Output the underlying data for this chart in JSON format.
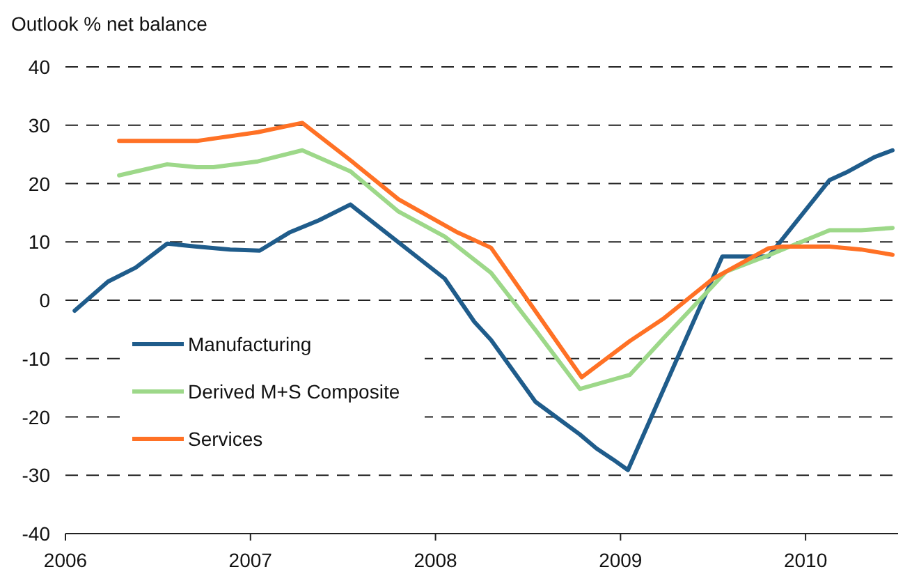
{
  "chart_data": {
    "type": "line",
    "ylabel": "Outlook % net balance",
    "xlim": [
      2006,
      2010.5
    ],
    "xticks": [
      2006,
      2007,
      2008,
      2009,
      2010
    ],
    "ylim": [
      -40,
      40
    ],
    "yticks": [
      -40,
      -30,
      -20,
      -10,
      0,
      10,
      20,
      30,
      40
    ],
    "grid": "y",
    "legend": "bottom left",
    "marker": "none",
    "line_style": "solid",
    "series": [
      {
        "name": "Manufacturing",
        "color": "#1f5c8b",
        "x": [
          2006.05,
          2006.23,
          2006.38,
          2006.55,
          2006.71,
          2006.89,
          2007.05,
          2007.21,
          2007.37,
          2007.54,
          2008.05,
          2008.21,
          2008.3,
          2008.54,
          2008.78,
          2008.87,
          2008.96,
          2009.04,
          2009.55,
          2009.8,
          2010.13,
          2010.22,
          2010.37,
          2010.47
        ],
        "values": [
          -1.8,
          3.2,
          5.6,
          9.7,
          9.2,
          8.7,
          8.5,
          11.6,
          13.7,
          16.4,
          3.7,
          -3.7,
          -6.8,
          -17.4,
          -23,
          -25.4,
          -27.3,
          -29.1,
          7.5,
          7.5,
          20.6,
          21.9,
          24.5,
          25.7
        ]
      },
      {
        "name": "Derived M+S Composite",
        "color": "#9dd889",
        "x": [
          2006.29,
          2006.55,
          2006.71,
          2006.8,
          2007.04,
          2007.28,
          2007.54,
          2007.8,
          2008.05,
          2008.3,
          2008.54,
          2008.78,
          2009.05,
          2009.23,
          2009.45,
          2009.57,
          2009.8,
          2010.13,
          2010.3,
          2010.47
        ],
        "values": [
          21.4,
          23.3,
          22.8,
          22.8,
          23.8,
          25.7,
          22.1,
          15.2,
          10.9,
          4.7,
          -5.1,
          -15.2,
          -12.8,
          -6.6,
          0.8,
          4.9,
          7.7,
          12,
          12,
          12.4
        ]
      },
      {
        "name": "Services",
        "color": "#ff7125",
        "x": [
          2006.29,
          2006.71,
          2007.04,
          2007.28,
          2007.54,
          2007.8,
          2008.12,
          2008.3,
          2008.79,
          2009.05,
          2009.23,
          2009.5,
          2009.8,
          2009.87,
          2010.13,
          2010.3,
          2010.47
        ],
        "values": [
          27.3,
          27.3,
          28.8,
          30.4,
          24,
          17.3,
          11.6,
          9,
          -13.2,
          -7,
          -3.2,
          3.7,
          8.9,
          9.2,
          9.2,
          8.7,
          7.8
        ]
      }
    ]
  }
}
